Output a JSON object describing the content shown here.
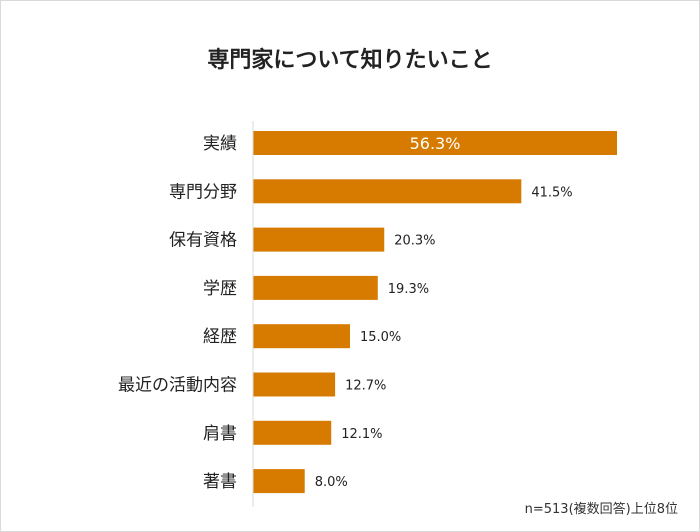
{
  "chart_data": {
    "type": "bar",
    "orientation": "horizontal",
    "title": "専門家について知りたいこと",
    "categories": [
      "実績",
      "専門分野",
      "保有資格",
      "学歴",
      "経歴",
      "最近の活動内容",
      "肩書",
      "著書"
    ],
    "values": [
      56.3,
      41.5,
      20.3,
      19.3,
      15.0,
      12.7,
      12.1,
      8.0
    ],
    "data_labels": [
      "56.3%",
      "41.5%",
      "20.3%",
      "19.3%",
      "15.0%",
      "12.7%",
      "12.1%",
      "8.0%"
    ],
    "xlim": [
      0,
      60
    ],
    "grid": false,
    "bar_color": "#d67b00",
    "note": "n=513(複数回答)上位8位"
  }
}
